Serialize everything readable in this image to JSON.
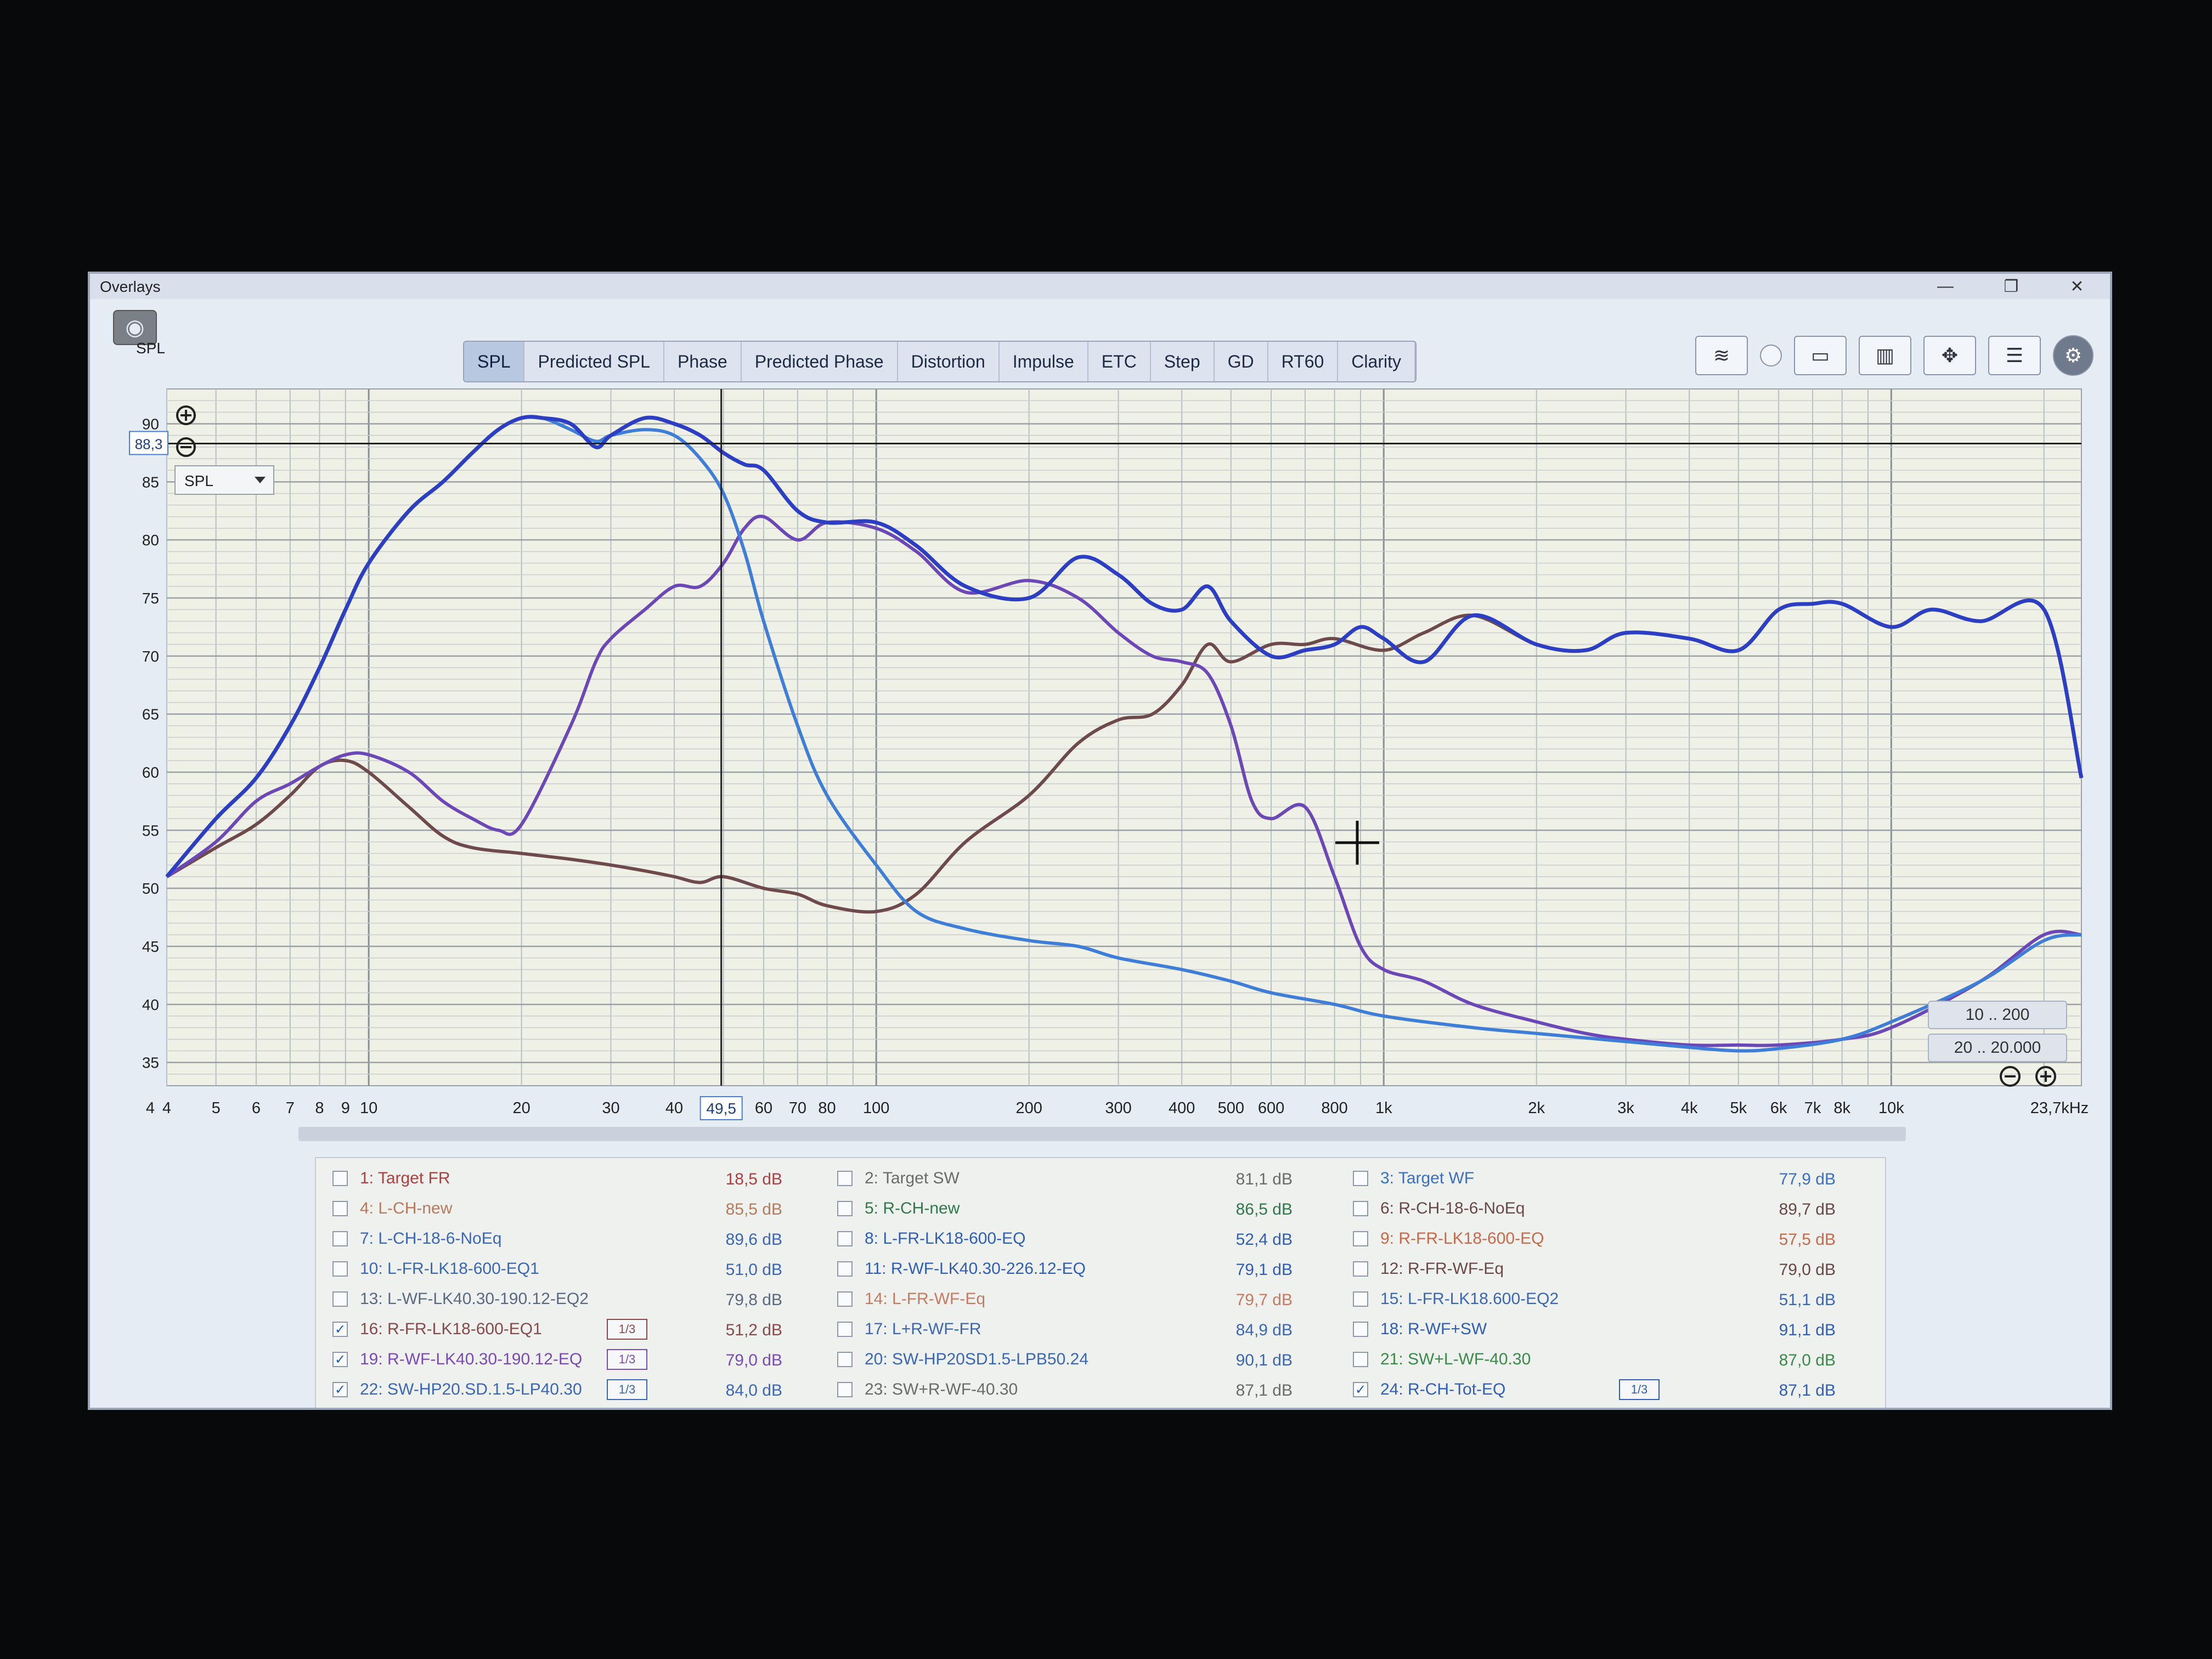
{
  "window": {
    "title": "Overlays"
  },
  "win_controls": {
    "min": "—",
    "max": "❐",
    "close": "✕"
  },
  "toolbar": {
    "spl_label": "SPL",
    "tabs": [
      "SPL",
      "Predicted SPL",
      "Phase",
      "Predicted Phase",
      "Distortion",
      "Impulse",
      "ETC",
      "Step",
      "GD",
      "RT60",
      "Clarity"
    ],
    "active_tab": "SPL",
    "icons": [
      "waterfall-icon",
      "radio-icon",
      "monitor-icon",
      "columns-icon",
      "arrows-icon",
      "panel-icon",
      "gear-icon"
    ]
  },
  "controls": {
    "cursor_value": "88,3",
    "selector_value": "SPL",
    "cursor_freq": "49,5",
    "range_buttons": [
      "10 .. 200",
      "20 .. 20.000"
    ]
  },
  "chart_data": {
    "type": "line",
    "xscale": "log",
    "xlim": [
      4,
      23700
    ],
    "ylim": [
      33,
      93
    ],
    "ylabel": "SPL",
    "grid": true,
    "y_ticks": [
      "35",
      "40",
      "45",
      "50",
      "55",
      "60",
      "65",
      "70",
      "75",
      "80",
      "85",
      "90"
    ],
    "x_ticks": [
      "4",
      "4",
      "5",
      "6",
      "7",
      "8",
      "9",
      "10",
      "20",
      "30",
      "40",
      "60",
      "70",
      "80",
      "100",
      "200",
      "300",
      "400",
      "500",
      "600",
      "800",
      "1k",
      "2k",
      "3k",
      "4k",
      "5k",
      "6k",
      "7k",
      "8k",
      "10k",
      "23,7kHz"
    ],
    "series": [
      {
        "name": "16: R-FR-LK18-600-EQ1",
        "color": "#6e4a4a",
        "x": [
          4,
          5,
          6,
          7,
          8,
          9,
          10,
          12,
          14,
          16,
          20,
          25,
          30,
          35,
          40,
          45,
          50,
          60,
          70,
          80,
          100,
          120,
          150,
          200,
          250,
          300,
          350,
          400,
          450,
          500,
          600,
          700,
          800,
          1000,
          1200,
          1500,
          2000,
          2500,
          3000,
          4000,
          5000,
          6000,
          7000,
          8000,
          10000,
          12000,
          15000,
          20000,
          23700
        ],
        "y": [
          51,
          53.5,
          55.5,
          58,
          60.5,
          61,
          60,
          57,
          54.5,
          53.5,
          53,
          52.5,
          52,
          51.5,
          51,
          50.5,
          51,
          50,
          49.5,
          48.5,
          48,
          49.5,
          54,
          58,
          62.5,
          64.5,
          65,
          67.5,
          71,
          69.5,
          71,
          71,
          71.5,
          70.5,
          72,
          73.5,
          71,
          70.5,
          72,
          71.5,
          70.5,
          74,
          74.5,
          74.5,
          72.5,
          74,
          73,
          74,
          59.5
        ]
      },
      {
        "name": "19: R-WF-LK40.30-190.12-EQ",
        "color": "#6b47b8",
        "x": [
          4,
          5,
          6,
          7,
          8,
          9,
          10,
          12,
          14,
          16,
          18,
          20,
          25,
          28,
          30,
          35,
          40,
          45,
          50,
          55,
          60,
          70,
          80,
          100,
          120,
          150,
          200,
          250,
          300,
          350,
          400,
          450,
          500,
          550,
          600,
          700,
          800,
          900,
          1000,
          1200,
          1500,
          2000,
          2500,
          3000,
          4000,
          5000,
          6000,
          8000,
          10000,
          15000,
          20000,
          23700
        ],
        "y": [
          51,
          54,
          57.5,
          59,
          60.5,
          61.5,
          61.5,
          60,
          57.5,
          56,
          55,
          55.5,
          64,
          69.5,
          71.5,
          74,
          76,
          76,
          78,
          81,
          82,
          80,
          81.5,
          81,
          79,
          75.5,
          76.5,
          75,
          72,
          70,
          69.5,
          68.5,
          64,
          57.5,
          56,
          57,
          51,
          45,
          43,
          42,
          40,
          38.5,
          37.5,
          37,
          36.5,
          36.5,
          36.5,
          37,
          38,
          42,
          46,
          46
        ]
      },
      {
        "name": "22: SW-HP20.SD.1.5-LP40.30",
        "color": "#3f7ed8",
        "x": [
          4,
          5,
          6,
          7,
          8,
          9,
          10,
          12,
          14,
          16,
          18,
          20,
          22,
          25,
          28,
          30,
          35,
          40,
          45,
          50,
          55,
          60,
          70,
          80,
          100,
          120,
          150,
          200,
          250,
          300,
          400,
          500,
          600,
          800,
          1000,
          1500,
          2000,
          3000,
          4000,
          5000,
          6000,
          8000,
          10000,
          15000,
          20000,
          23700
        ],
        "y": [
          51,
          56,
          59.5,
          64,
          69,
          74,
          78,
          82.5,
          85,
          87.5,
          89.5,
          90.5,
          90.5,
          89.5,
          88.5,
          89,
          89.5,
          89,
          87,
          84,
          79,
          73,
          64,
          58,
          52,
          48,
          46.5,
          45.5,
          45,
          44,
          43,
          42,
          41,
          40,
          39,
          38,
          37.5,
          36.8,
          36.3,
          36,
          36.2,
          37,
          38.5,
          42,
          45.5,
          46
        ]
      },
      {
        "name": "24: R-CH-Tot-EQ",
        "color": "#2c3fc4",
        "x": [
          4,
          5,
          6,
          7,
          8,
          9,
          10,
          12,
          14,
          16,
          18,
          20,
          22,
          25,
          28,
          30,
          35,
          40,
          45,
          50,
          55,
          60,
          70,
          80,
          100,
          120,
          150,
          200,
          250,
          300,
          350,
          400,
          450,
          500,
          600,
          700,
          800,
          900,
          1000,
          1200,
          1500,
          2000,
          2500,
          3000,
          4000,
          5000,
          6000,
          7000,
          8000,
          10000,
          12000,
          15000,
          20000,
          23700
        ],
        "y": [
          51,
          56,
          59.5,
          64,
          69,
          74,
          78,
          82.5,
          85,
          87.5,
          89.5,
          90.5,
          90.5,
          90,
          88,
          89,
          90.5,
          90,
          89,
          87.5,
          86.5,
          86,
          82.5,
          81.5,
          81.5,
          79.5,
          76,
          75,
          78.5,
          77,
          74.5,
          74,
          76,
          73,
          70,
          70.5,
          71,
          72.5,
          71.5,
          69.5,
          73.5,
          71,
          70.5,
          72,
          71.5,
          70.5,
          74,
          74.5,
          74.5,
          72.5,
          74,
          73,
          74,
          59.5
        ]
      }
    ]
  },
  "legend": {
    "entries": [
      {
        "label": "1: Target FR",
        "value": "18,5 dB",
        "checked": false,
        "color": "#b04040",
        "smooth": ""
      },
      {
        "label": "2: Target SW",
        "value": "81,1 dB",
        "checked": false,
        "color": "#6b6b6b",
        "smooth": ""
      },
      {
        "label": "3: Target WF",
        "value": "77,9 dB",
        "checked": false,
        "color": "#3a6fc8",
        "smooth": ""
      },
      {
        "label": "4: L-CH-new",
        "value": "85,5 dB",
        "checked": false,
        "color": "#b87a5c",
        "smooth": ""
      },
      {
        "label": "5: R-CH-new",
        "value": "86,5 dB",
        "checked": false,
        "color": "#2f7a4a",
        "smooth": ""
      },
      {
        "label": "6: R-CH-18-6-NoEq",
        "value": "89,7 dB",
        "checked": false,
        "color": "#6b4848",
        "smooth": ""
      },
      {
        "label": "7: L-CH-18-6-NoEq",
        "value": "89,6 dB",
        "checked": false,
        "color": "#3b67b8",
        "smooth": ""
      },
      {
        "label": "8: L-FR-LK18-600-EQ",
        "value": "52,4 dB",
        "checked": false,
        "color": "#2f5fb8",
        "smooth": ""
      },
      {
        "label": "9: R-FR-LK18-600-EQ",
        "value": "57,5 dB",
        "checked": false,
        "color": "#c86a4a",
        "smooth": ""
      },
      {
        "label": "10: L-FR-LK18-600-EQ1",
        "value": "51,0 dB",
        "checked": false,
        "color": "#3b67b8",
        "smooth": ""
      },
      {
        "label": "11: R-WF-LK40.30-226.12-EQ",
        "value": "79,1 dB",
        "checked": false,
        "color": "#2f5fb8",
        "smooth": ""
      },
      {
        "label": "12: R-FR-WF-Eq",
        "value": "79,0 dB",
        "checked": false,
        "color": "#6b4848",
        "smooth": ""
      },
      {
        "label": "13: L-WF-LK40.30-190.12-EQ2",
        "value": "79,8 dB",
        "checked": false,
        "color": "#5a6a80",
        "smooth": ""
      },
      {
        "label": "14: L-FR-WF-Eq",
        "value": "79,7 dB",
        "checked": false,
        "color": "#c87a60",
        "smooth": ""
      },
      {
        "label": "15: L-FR-LK18.600-EQ2",
        "value": "51,1 dB",
        "checked": false,
        "color": "#3b67b8",
        "smooth": ""
      },
      {
        "label": "16: R-FR-LK18-600-EQ1",
        "value": "51,2 dB",
        "checked": true,
        "color": "#8a4a4a",
        "smooth": "1/3"
      },
      {
        "label": "17: L+R-WF-FR",
        "value": "84,9 dB",
        "checked": false,
        "color": "#3b67b8",
        "smooth": ""
      },
      {
        "label": "18: R-WF+SW",
        "value": "91,1 dB",
        "checked": false,
        "color": "#2f5fb8",
        "smooth": ""
      },
      {
        "label": "19: R-WF-LK40.30-190.12-EQ",
        "value": "79,0 dB",
        "checked": true,
        "color": "#7a4ab8",
        "smooth": "1/3"
      },
      {
        "label": "20: SW-HP20SD1.5-LPB50.24",
        "value": "90,1 dB",
        "checked": false,
        "color": "#3b67b8",
        "smooth": ""
      },
      {
        "label": "21: SW+L-WF-40.30",
        "value": "87,0 dB",
        "checked": false,
        "color": "#3a8a4a",
        "smooth": ""
      },
      {
        "label": "22: SW-HP20.SD.1.5-LP40.30",
        "value": "84,0 dB",
        "checked": true,
        "color": "#3b67b8",
        "smooth": "1/3"
      },
      {
        "label": "23: SW+R-WF-40.30",
        "value": "87,1 dB",
        "checked": false,
        "color": "#6b6b6b",
        "smooth": ""
      },
      {
        "label": "24: R-CH-Tot-EQ",
        "value": "87,1 dB",
        "checked": true,
        "color": "#2f5fb8",
        "smooth": "1/3"
      }
    ]
  }
}
